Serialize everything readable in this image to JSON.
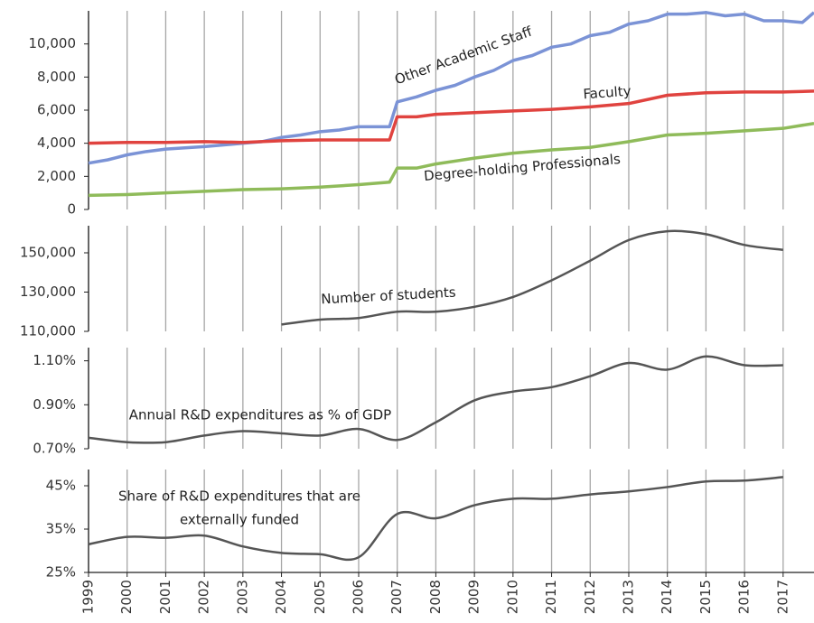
{
  "chart_data": [
    {
      "type": "line",
      "ylim": [
        0,
        12000
      ],
      "yticks": [
        0,
        {
          "value": 2000,
          "label": "2,000"
        },
        {
          "value": 4000,
          "label": "4,000"
        },
        {
          "value": 6000,
          "label": "6,000"
        },
        {
          "value": 8000,
          "label": "8,000"
        },
        {
          "value": 10000,
          "label": "10,000"
        }
      ],
      "series": [
        {
          "name": "Other Academic Staff",
          "color": "#7b93d6",
          "x": [
            1999,
            1999.5,
            2000,
            2000.5,
            2001,
            2002,
            2003,
            2003.5,
            2004,
            2004.5,
            2005,
            2005.5,
            2006,
            2006.8,
            2007,
            2007.5,
            2008,
            2008.5,
            2009,
            2009.5,
            2010,
            2010.5,
            2011,
            2011.5,
            2012,
            2012.5,
            2013,
            2013.5,
            2014,
            2014.5,
            2015,
            2015.5,
            2016,
            2016.5,
            2017,
            2017.5,
            2017.8
          ],
          "values": [
            2800,
            3000,
            3300,
            3500,
            3650,
            3800,
            4000,
            4100,
            4350,
            4500,
            4700,
            4800,
            5000,
            5000,
            6500,
            6800,
            7200,
            7500,
            8000,
            8400,
            9000,
            9300,
            9800,
            10000,
            10500,
            10700,
            11200,
            11400,
            11800,
            11800,
            11900,
            11700,
            11800,
            11400,
            11400,
            11300,
            11900
          ]
        },
        {
          "name": "Faculty",
          "color": "#e0433f",
          "x": [
            1999,
            2000,
            2001,
            2002,
            2003,
            2004,
            2005,
            2006,
            2006.8,
            2007,
            2007.5,
            2008,
            2009,
            2010,
            2011,
            2012,
            2013,
            2014,
            2015,
            2016,
            2017,
            2017.8
          ],
          "values": [
            4000,
            4050,
            4050,
            4100,
            4050,
            4150,
            4200,
            4200,
            4200,
            5600,
            5600,
            5750,
            5850,
            5950,
            6050,
            6200,
            6400,
            6900,
            7050,
            7100,
            7100,
            7150
          ]
        },
        {
          "name": "Degree-holding Professionals",
          "color": "#8fbb5a",
          "x": [
            1999,
            2000,
            2001,
            2002,
            2003,
            2004,
            2005,
            2006,
            2006.8,
            2007,
            2007.5,
            2008,
            2009,
            2010,
            2011,
            2012,
            2013,
            2014,
            2015,
            2016,
            2017,
            2017.8
          ],
          "values": [
            850,
            900,
            1000,
            1100,
            1200,
            1250,
            1350,
            1500,
            1650,
            2500,
            2500,
            2750,
            3100,
            3400,
            3600,
            3750,
            4100,
            4500,
            4600,
            4750,
            4900,
            5200
          ]
        }
      ]
    },
    {
      "type": "line",
      "smooth": true,
      "ylim": [
        110000,
        163800
      ],
      "yticks": [
        {
          "value": 110000,
          "label": "110,000"
        },
        {
          "value": 130000,
          "label": "130,000"
        },
        {
          "value": 150000,
          "label": "150,000"
        }
      ],
      "x": [
        2004,
        2005,
        2006,
        2007,
        2008,
        2009,
        2010,
        2011,
        2012,
        2013,
        2014,
        2015,
        2016,
        2017
      ],
      "series": [
        {
          "name": "Number of students",
          "color": "#555555",
          "values": [
            113500,
            116000,
            116800,
            120000,
            120000,
            122500,
            127500,
            136000,
            146000,
            156500,
            161000,
            159500,
            154000,
            151500
          ]
        }
      ]
    },
    {
      "type": "line",
      "smooth": true,
      "ylim": [
        0.7,
        1.16
      ],
      "yticks": [
        {
          "value": 0.7,
          "label": "0.70%"
        },
        {
          "value": 0.9,
          "label": "0.90%"
        },
        {
          "value": 1.1,
          "label": "1.10%"
        }
      ],
      "x": [
        1999,
        2000,
        2001,
        2002,
        2003,
        2004,
        2005,
        2006,
        2007,
        2008,
        2009,
        2010,
        2011,
        2012,
        2013,
        2014,
        2015,
        2016,
        2017
      ],
      "series": [
        {
          "name": "Annual R&D expenditures as % of GDP",
          "color": "#555555",
          "values": [
            0.75,
            0.73,
            0.73,
            0.76,
            0.78,
            0.77,
            0.76,
            0.79,
            0.74,
            0.82,
            0.92,
            0.96,
            0.98,
            1.03,
            1.09,
            1.06,
            1.12,
            1.08,
            1.08
          ]
        }
      ]
    },
    {
      "type": "line",
      "smooth": true,
      "ylim": [
        25,
        48.75
      ],
      "xlim": [
        1999,
        2017.8
      ],
      "yticks": [
        {
          "value": 25,
          "label": "25%"
        },
        {
          "value": 35,
          "label": "35%"
        },
        {
          "value": 45,
          "label": "45%"
        }
      ],
      "xticks": [
        1999,
        2000,
        2001,
        2002,
        2003,
        2004,
        2005,
        2006,
        2007,
        2008,
        2009,
        2010,
        2011,
        2012,
        2013,
        2014,
        2015,
        2016,
        2017
      ],
      "x": [
        1999,
        2000,
        2001,
        2002,
        2003,
        2004,
        2005,
        2006,
        2007,
        2008,
        2009,
        2010,
        2011,
        2012,
        2013,
        2014,
        2015,
        2016,
        2017
      ],
      "annotation": [
        "Share of R&D expenditures that are",
        "externally funded"
      ],
      "series": [
        {
          "color": "#555555",
          "values": [
            31.5,
            33.2,
            33,
            33.5,
            31,
            29.5,
            29.2,
            28.5,
            38.5,
            37.5,
            40.5,
            42,
            42,
            43,
            43.7,
            44.7,
            46,
            46.2,
            47
          ]
        }
      ]
    }
  ]
}
